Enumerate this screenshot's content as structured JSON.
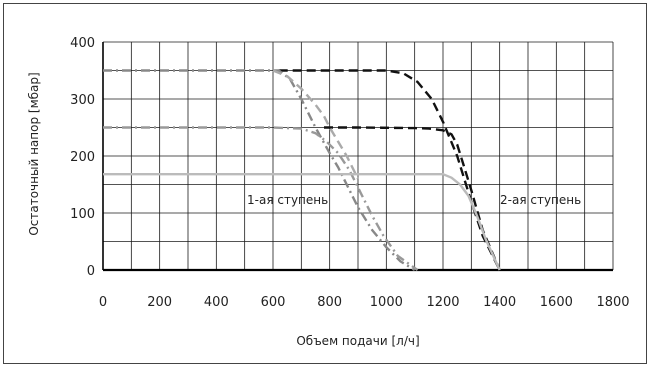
{
  "chart_data": {
    "type": "line",
    "title": "",
    "xlabel": "Объем подачи [л/ч]",
    "ylabel": "Остаточный напор [мбар]",
    "xlim": [
      0,
      1800
    ],
    "ylim": [
      0,
      400
    ],
    "x_ticks": [
      0,
      200,
      400,
      600,
      800,
      1000,
      1200,
      1400,
      1600,
      1800
    ],
    "y_ticks": [
      0,
      100,
      200,
      300,
      400
    ],
    "grid": {
      "x_step": 100,
      "y_step": 50
    },
    "annotations": [
      {
        "text": "1-ая ступень",
        "x": 1010,
        "y": 125
      },
      {
        "text": "2-ая ступень",
        "x": 1590,
        "y": 125
      }
    ],
    "series": [
      {
        "stroke": "#111111",
        "dash": "dashed",
        "points": [
          [
            620,
            350
          ],
          [
            700,
            350
          ],
          [
            800,
            350
          ],
          [
            1000,
            350
          ],
          [
            1060,
            345
          ],
          [
            1110,
            330
          ],
          [
            1160,
            300
          ],
          [
            1200,
            260
          ],
          [
            1250,
            200
          ],
          [
            1300,
            120
          ],
          [
            1340,
            60
          ],
          [
            1400,
            0
          ]
        ]
      },
      {
        "stroke": "#111111",
        "dash": "dashed",
        "points": [
          [
            780,
            250
          ],
          [
            900,
            250
          ],
          [
            1100,
            249
          ],
          [
            1150,
            248
          ],
          [
            1200,
            245
          ],
          [
            1230,
            238
          ],
          [
            1250,
            220
          ],
          [
            1275,
            180
          ],
          [
            1300,
            140
          ],
          [
            1340,
            70
          ],
          [
            1400,
            0
          ]
        ]
      },
      {
        "stroke": "#888888",
        "dash": "dashdot",
        "points": [
          [
            0,
            350
          ],
          [
            200,
            350
          ],
          [
            400,
            350
          ],
          [
            600,
            350
          ],
          [
            620,
            350
          ],
          [
            660,
            335
          ],
          [
            700,
            300
          ],
          [
            750,
            250
          ],
          [
            800,
            205
          ],
          [
            830,
            180
          ],
          [
            860,
            150
          ],
          [
            900,
            110
          ],
          [
            950,
            70
          ],
          [
            1000,
            40
          ],
          [
            1050,
            15
          ],
          [
            1100,
            0
          ]
        ]
      },
      {
        "stroke": "#999999",
        "dash": "dashdot",
        "points": [
          [
            0,
            250
          ],
          [
            200,
            250
          ],
          [
            400,
            250
          ],
          [
            600,
            250
          ],
          [
            700,
            248
          ],
          [
            750,
            240
          ],
          [
            790,
            225
          ],
          [
            830,
            205
          ],
          [
            870,
            175
          ],
          [
            910,
            135
          ],
          [
            950,
            95
          ],
          [
            990,
            60
          ],
          [
            1040,
            25
          ],
          [
            1110,
            0
          ]
        ]
      },
      {
        "stroke": "#aaaaaa",
        "dash": "dashed",
        "points": [
          [
            600,
            350
          ],
          [
            650,
            340
          ],
          [
            700,
            318
          ],
          [
            750,
            290
          ],
          [
            780,
            270
          ],
          [
            800,
            250
          ],
          [
            830,
            225
          ],
          [
            860,
            200
          ],
          [
            900,
            160
          ]
        ]
      },
      {
        "stroke": "#bbbbbb",
        "dash": "solid",
        "points": [
          [
            0,
            168
          ],
          [
            200,
            168
          ],
          [
            400,
            168
          ],
          [
            600,
            168
          ],
          [
            800,
            168
          ],
          [
            1000,
            168
          ],
          [
            1100,
            168
          ],
          [
            1200,
            168
          ],
          [
            1230,
            162
          ],
          [
            1260,
            150
          ],
          [
            1290,
            130
          ],
          [
            1320,
            95
          ],
          [
            1350,
            55
          ],
          [
            1380,
            22
          ],
          [
            1400,
            0
          ]
        ]
      }
    ]
  }
}
